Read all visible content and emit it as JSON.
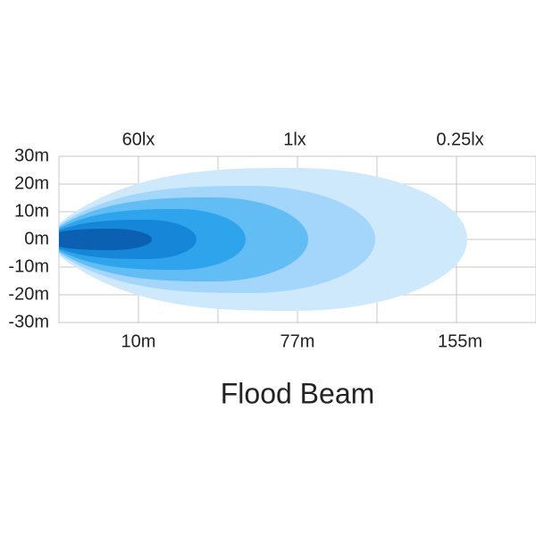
{
  "title": "Flood Beam",
  "top_labels": [
    "60lx",
    "1lx",
    "0.25lx"
  ],
  "bottom_labels": [
    "10m",
    "77m",
    "155m"
  ],
  "y_labels": [
    "30m",
    "20m",
    "10m",
    "0m",
    "-10m",
    "-20m",
    "-30m"
  ]
}
